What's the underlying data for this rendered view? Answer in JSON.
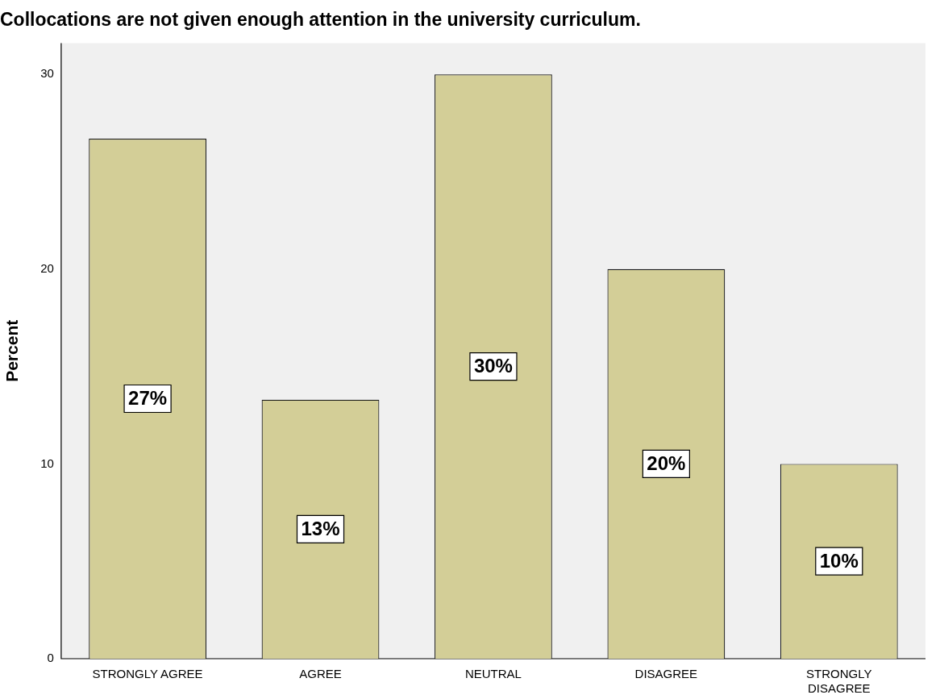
{
  "chart_data": {
    "type": "bar",
    "title": "Collocations are not given enough attention in the university curriculum.",
    "ylabel": "Percent",
    "categories": [
      "STRONGLY AGREE",
      "AGREE",
      "NEUTRAL",
      "DISAGREE",
      "STRONGLY DISAGREE"
    ],
    "values": [
      26.7,
      13.3,
      30,
      20,
      10
    ],
    "value_labels": [
      "27%",
      "13%",
      "30%",
      "20%",
      "10%"
    ],
    "color": "#d3ce97",
    "ylim": [
      0,
      31.6
    ],
    "yticks": [
      0,
      10,
      20,
      30
    ],
    "grid": false,
    "legend": false
  }
}
